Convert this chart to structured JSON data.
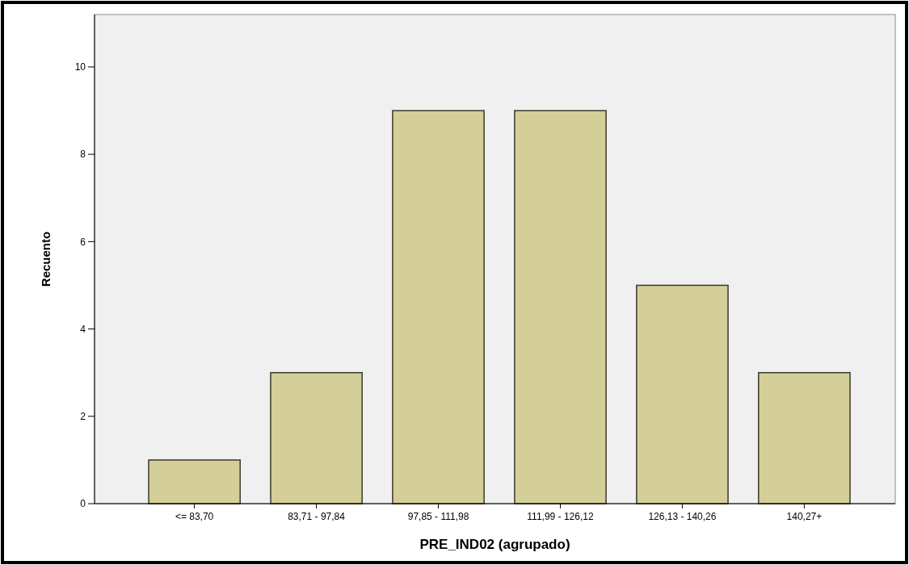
{
  "chart_data": {
    "type": "bar",
    "xlabel": "PRE_IND02 (agrupado)",
    "ylabel": "Recuento",
    "categories": [
      "<= 83,70",
      "83,71 - 97,84",
      "97,85 - 111,98",
      "111,99 - 126,12",
      "126,13 - 140,26",
      "140,27+"
    ],
    "values": [
      1,
      3,
      9,
      9,
      5,
      3
    ],
    "color": "#d4ce98",
    "ylim": [
      0,
      11.2
    ],
    "yticks": [
      0,
      2,
      4,
      6,
      8,
      10
    ],
    "grid": false
  }
}
